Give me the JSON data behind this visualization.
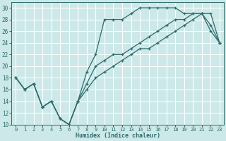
{
  "xlabel": "Humidex (Indice chaleur)",
  "bg_color": "#cce8e8",
  "grid_color": "#ffffff",
  "line_color": "#2d6b6b",
  "xlim": [
    -0.5,
    23.5
  ],
  "ylim": [
    10,
    31
  ],
  "xticks": [
    0,
    1,
    2,
    3,
    4,
    5,
    6,
    7,
    8,
    9,
    10,
    11,
    12,
    13,
    14,
    15,
    16,
    17,
    18,
    19,
    20,
    21,
    22,
    23
  ],
  "yticks": [
    10,
    12,
    14,
    16,
    18,
    20,
    22,
    24,
    26,
    28,
    30
  ],
  "line1_x": [
    0,
    1,
    2,
    3,
    4,
    5,
    6,
    7,
    8,
    9,
    10,
    11,
    12,
    13,
    14,
    15,
    16,
    17,
    18,
    19,
    20,
    21,
    22,
    23
  ],
  "line1_y": [
    18,
    16,
    17,
    13,
    14,
    11,
    10,
    14,
    17,
    20,
    21,
    22,
    22,
    23,
    24,
    25,
    26,
    27,
    28,
    28,
    29,
    29,
    29,
    24
  ],
  "line2_x": [
    0,
    1,
    2,
    3,
    4,
    5,
    6,
    7,
    8,
    9,
    10,
    11,
    12,
    13,
    14,
    15,
    16,
    17,
    18,
    19,
    20,
    21,
    22,
    23
  ],
  "line2_y": [
    18,
    16,
    17,
    13,
    14,
    11,
    10,
    14,
    19,
    22,
    28,
    28,
    28,
    29,
    30,
    30,
    30,
    30,
    30,
    29,
    29,
    29,
    27,
    24
  ],
  "line3_x": [
    0,
    1,
    2,
    3,
    4,
    5,
    6,
    7,
    8,
    9,
    10,
    11,
    12,
    13,
    14,
    15,
    16,
    17,
    18,
    19,
    20,
    21,
    22,
    23
  ],
  "line3_y": [
    18,
    16,
    17,
    13,
    14,
    11,
    10,
    14,
    16,
    18,
    19,
    20,
    21,
    22,
    23,
    23,
    24,
    25,
    26,
    27,
    28,
    29,
    26,
    24
  ]
}
